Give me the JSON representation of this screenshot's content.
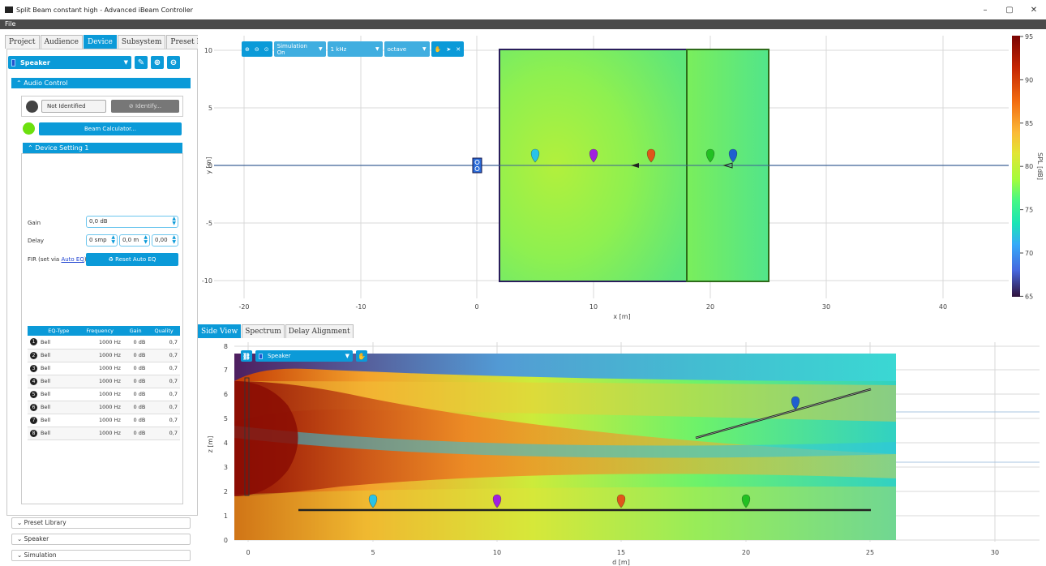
{
  "window": {
    "title": "Split Beam constant high - Advanced iBeam Controller",
    "min": "–",
    "max": "▢",
    "close": "✕"
  },
  "menu": {
    "file": "File"
  },
  "left_tabs": [
    "Project",
    "Audience",
    "Device",
    "Subsystem",
    "Preset Lib"
  ],
  "device": {
    "selected": "Speaker"
  },
  "audio_control": {
    "header": "Audio Control",
    "status": "Not Identified",
    "identify": "Identify...",
    "beam_calc": "Beam Calculator...",
    "device_setting": "Device Setting 1",
    "gain_label": "Gain",
    "gain_value": "0,0 dB",
    "delay_label": "Delay",
    "delay_smp": "0 smp",
    "delay_m": "0,0 m",
    "delay_ms": "0,00",
    "fir_label": "FIR (set via",
    "fir_link": "Auto EQ",
    "fir_close": ")",
    "reset_auto_eq": "Reset Auto EQ"
  },
  "eq_table": {
    "headers": [
      "EQ-Type",
      "Frequency",
      "Gain",
      "Quality"
    ],
    "rows": [
      {
        "n": "1",
        "type": "Bell",
        "freq": "1000 Hz",
        "gain": "0 dB",
        "q": "0,7"
      },
      {
        "n": "2",
        "type": "Bell",
        "freq": "1000 Hz",
        "gain": "0 dB",
        "q": "0,7"
      },
      {
        "n": "3",
        "type": "Bell",
        "freq": "1000 Hz",
        "gain": "0 dB",
        "q": "0,7"
      },
      {
        "n": "4",
        "type": "Bell",
        "freq": "1000 Hz",
        "gain": "0 dB",
        "q": "0,7"
      },
      {
        "n": "5",
        "type": "Bell",
        "freq": "1000 Hz",
        "gain": "0 dB",
        "q": "0,7"
      },
      {
        "n": "6",
        "type": "Bell",
        "freq": "1000 Hz",
        "gain": "0 dB",
        "q": "0,7"
      },
      {
        "n": "7",
        "type": "Bell",
        "freq": "1000 Hz",
        "gain": "0 dB",
        "q": "0,7"
      },
      {
        "n": "8",
        "type": "Bell",
        "freq": "1000 Hz",
        "gain": "0 dB",
        "q": "0,7"
      }
    ]
  },
  "accordions": [
    "Preset Library",
    "Speaker",
    "Simulation"
  ],
  "toolbar": {
    "simulation": "Simulation On",
    "freq": "1 kHz",
    "band": "octave"
  },
  "top_plot": {
    "xlabel": "x [m]",
    "ylabel": "y [m]",
    "xticks": [
      "-20",
      "-10",
      "0",
      "10",
      "20",
      "30",
      "40"
    ],
    "yticks": [
      "10",
      "5",
      "0",
      "-5",
      "-10"
    ],
    "colorbar_label": "SPL [dB]",
    "colorbar_ticks": [
      "95",
      "90",
      "85",
      "80",
      "75",
      "70",
      "65"
    ]
  },
  "bottom_tabs": [
    "Side View",
    "Spectrum",
    "Delay Alignment"
  ],
  "side_view": {
    "speaker": "Speaker",
    "xlabel": "d [m]",
    "ylabel": "z [m]",
    "xticks": [
      "0",
      "5",
      "10",
      "15",
      "20",
      "25",
      "30"
    ],
    "yticks": [
      "8",
      "7",
      "6",
      "5",
      "4",
      "3",
      "2",
      "1",
      "0"
    ]
  },
  "colors": {
    "accent": "#0b9ad8",
    "marker_cyan": "#29c3e8",
    "marker_purple": "#a020e0",
    "marker_orange": "#e0561a",
    "marker_green": "#22c022",
    "marker_blue": "#1f5fd0"
  }
}
